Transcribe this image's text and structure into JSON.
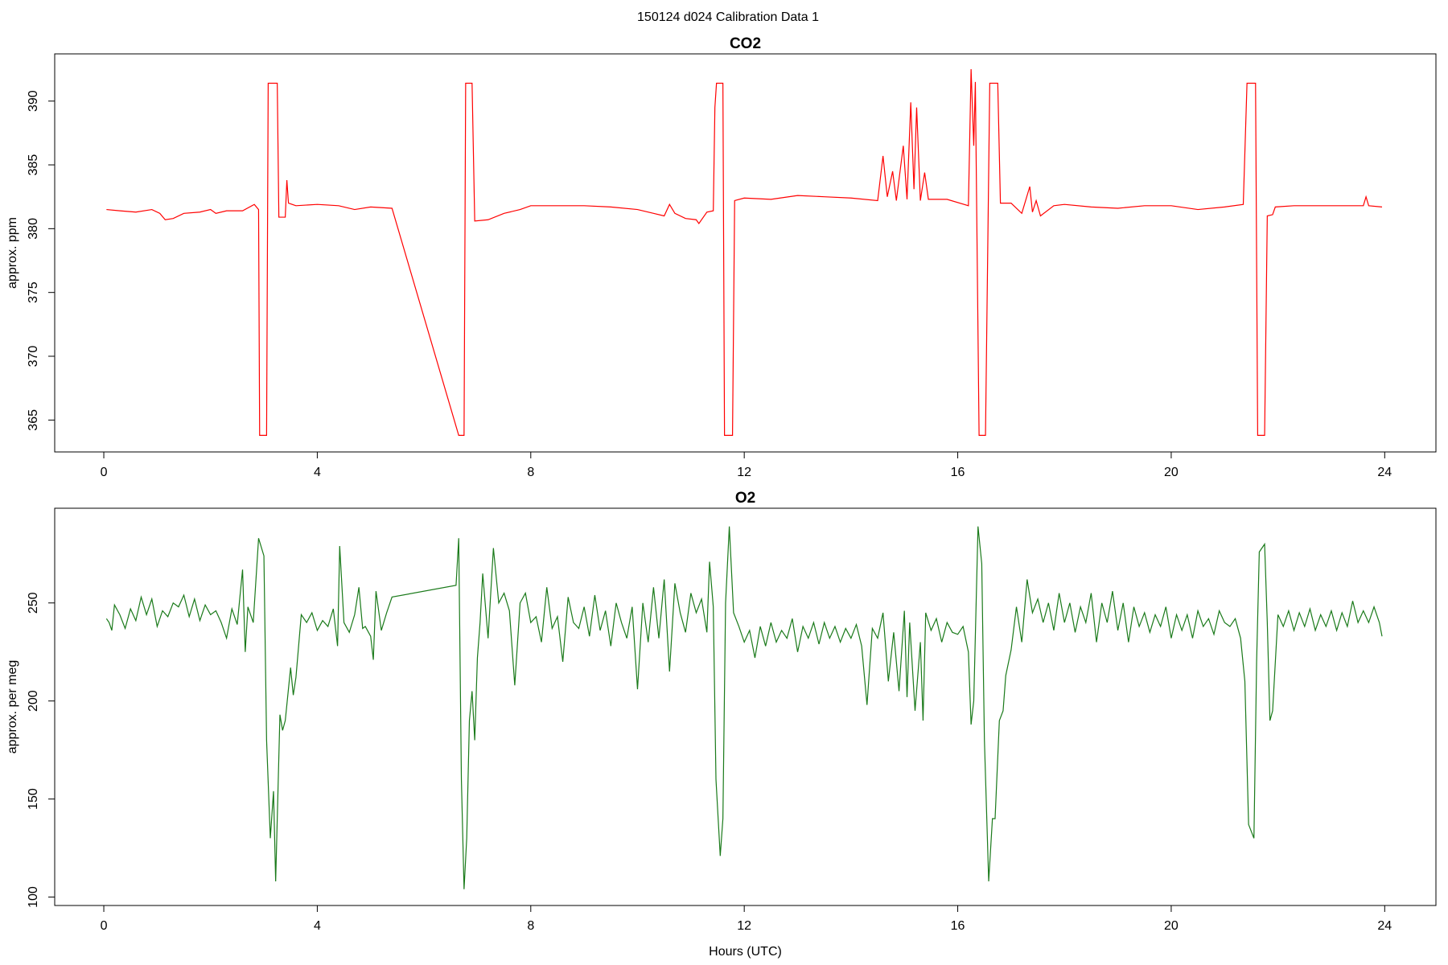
{
  "title": "150124   d024   Calibration Data 1",
  "chart_data": [
    {
      "type": "line",
      "title": "CO2",
      "ylabel": "approx. ppm",
      "color": "#ff0000",
      "xlim": [
        -0.92,
        24.96
      ],
      "xticks": [
        0,
        4,
        8,
        12,
        16,
        20,
        24
      ],
      "ylim": [
        362.5,
        393.7
      ],
      "yticks": [
        365,
        370,
        375,
        380,
        385,
        390
      ],
      "x": [
        0.05,
        0.3,
        0.6,
        0.9,
        1.05,
        1.15,
        1.3,
        1.5,
        1.8,
        2.0,
        2.1,
        2.3,
        2.6,
        2.82,
        2.9,
        2.92,
        3.05,
        3.08,
        3.25,
        3.28,
        3.4,
        3.43,
        3.46,
        3.6,
        4.0,
        4.4,
        4.7,
        5.0,
        5.4,
        6.65,
        6.75,
        6.78,
        6.9,
        6.95,
        7.2,
        7.5,
        7.8,
        8.0,
        8.5,
        9.0,
        9.5,
        10.0,
        10.3,
        10.5,
        10.6,
        10.7,
        10.9,
        11.1,
        11.15,
        11.3,
        11.42,
        11.45,
        11.48,
        11.6,
        11.63,
        11.78,
        11.82,
        12.0,
        12.5,
        13.0,
        13.5,
        14.0,
        14.5,
        14.6,
        14.68,
        14.78,
        14.85,
        14.98,
        15.05,
        15.12,
        15.18,
        15.23,
        15.3,
        15.38,
        15.45,
        15.8,
        16.2,
        16.25,
        16.3,
        16.33,
        16.4,
        16.52,
        16.6,
        16.75,
        16.8,
        17.0,
        17.2,
        17.35,
        17.4,
        17.47,
        17.55,
        17.8,
        18.0,
        18.5,
        19.0,
        19.5,
        20.0,
        20.5,
        21.0,
        21.35,
        21.42,
        21.58,
        21.62,
        21.75,
        21.8,
        21.9,
        21.95,
        22.3,
        22.8,
        23.3,
        23.6,
        23.65,
        23.7,
        23.95
      ],
      "values": [
        381.5,
        381.4,
        381.3,
        381.5,
        381.2,
        380.7,
        380.8,
        381.2,
        381.3,
        381.5,
        381.2,
        381.4,
        381.4,
        381.9,
        381.5,
        363.8,
        363.8,
        391.4,
        391.4,
        380.9,
        380.9,
        383.8,
        382.0,
        381.8,
        381.9,
        381.8,
        381.5,
        381.7,
        381.6,
        363.8,
        363.8,
        391.4,
        391.4,
        380.6,
        380.7,
        381.2,
        381.5,
        381.8,
        381.8,
        381.8,
        381.7,
        381.5,
        381.2,
        381.0,
        381.9,
        381.2,
        380.8,
        380.7,
        380.4,
        381.3,
        381.4,
        389.5,
        391.4,
        391.4,
        363.8,
        363.8,
        382.2,
        382.4,
        382.3,
        382.6,
        382.5,
        382.4,
        382.2,
        385.7,
        382.5,
        384.5,
        382.2,
        386.5,
        382.3,
        389.9,
        383.1,
        389.5,
        382.2,
        384.4,
        382.3,
        382.3,
        381.8,
        392.5,
        386.5,
        391.5,
        363.8,
        363.8,
        391.4,
        391.4,
        382.0,
        382.0,
        381.2,
        383.3,
        381.3,
        382.2,
        381.0,
        381.8,
        381.9,
        381.7,
        381.6,
        381.8,
        381.8,
        381.5,
        381.7,
        381.9,
        391.4,
        391.4,
        363.8,
        363.8,
        381.0,
        381.1,
        381.7,
        381.8,
        381.8,
        381.8,
        381.8,
        382.5,
        381.8,
        381.7
      ]
    },
    {
      "type": "line",
      "title": "O2",
      "ylabel": "approx. per meg",
      "xlabel": "Hours (UTC)",
      "color": "#1a7a1a",
      "xlim": [
        -0.92,
        24.96
      ],
      "xticks": [
        0,
        4,
        8,
        12,
        16,
        20,
        24
      ],
      "ylim": [
        95.7,
        298.3
      ],
      "yticks": [
        100,
        150,
        200,
        250
      ],
      "x": [
        0.05,
        0.1,
        0.15,
        0.2,
        0.3,
        0.4,
        0.5,
        0.6,
        0.7,
        0.8,
        0.9,
        1.0,
        1.1,
        1.2,
        1.3,
        1.4,
        1.5,
        1.6,
        1.7,
        1.8,
        1.9,
        2.0,
        2.1,
        2.2,
        2.3,
        2.4,
        2.5,
        2.6,
        2.65,
        2.7,
        2.8,
        2.9,
        3.0,
        3.05,
        3.12,
        3.18,
        3.22,
        3.3,
        3.35,
        3.4,
        3.5,
        3.55,
        3.6,
        3.7,
        3.8,
        3.9,
        4.0,
        4.1,
        4.2,
        4.3,
        4.38,
        4.42,
        4.5,
        4.6,
        4.7,
        4.78,
        4.85,
        4.9,
        5.0,
        5.05,
        5.1,
        5.2,
        5.3,
        5.4,
        6.6,
        6.65,
        6.7,
        6.75,
        6.8,
        6.85,
        6.9,
        6.95,
        7.0,
        7.05,
        7.1,
        7.2,
        7.3,
        7.4,
        7.5,
        7.6,
        7.7,
        7.8,
        7.9,
        8.0,
        8.1,
        8.2,
        8.3,
        8.4,
        8.5,
        8.6,
        8.7,
        8.8,
        8.9,
        9.0,
        9.1,
        9.2,
        9.3,
        9.4,
        9.5,
        9.6,
        9.7,
        9.8,
        9.9,
        10.0,
        10.1,
        10.2,
        10.3,
        10.4,
        10.5,
        10.6,
        10.7,
        10.8,
        10.9,
        11.0,
        11.1,
        11.2,
        11.3,
        11.35,
        11.42,
        11.47,
        11.55,
        11.6,
        11.65,
        11.72,
        11.8,
        11.9,
        12.0,
        12.1,
        12.2,
        12.3,
        12.4,
        12.5,
        12.6,
        12.7,
        12.8,
        12.9,
        13.0,
        13.1,
        13.2,
        13.3,
        13.4,
        13.5,
        13.6,
        13.7,
        13.8,
        13.9,
        14.0,
        14.1,
        14.2,
        14.3,
        14.4,
        14.5,
        14.6,
        14.7,
        14.8,
        14.9,
        15.0,
        15.05,
        15.1,
        15.2,
        15.3,
        15.35,
        15.4,
        15.5,
        15.6,
        15.7,
        15.8,
        15.9,
        16.0,
        16.1,
        16.2,
        16.25,
        16.3,
        16.38,
        16.45,
        16.5,
        16.58,
        16.65,
        16.7,
        16.78,
        16.85,
        16.9,
        17.0,
        17.1,
        17.2,
        17.3,
        17.4,
        17.5,
        17.6,
        17.7,
        17.8,
        17.9,
        18.0,
        18.1,
        18.2,
        18.3,
        18.4,
        18.5,
        18.6,
        18.7,
        18.8,
        18.9,
        19.0,
        19.1,
        19.2,
        19.3,
        19.4,
        19.5,
        19.6,
        19.7,
        19.8,
        19.9,
        20.0,
        20.1,
        20.2,
        20.3,
        20.4,
        20.5,
        20.6,
        20.7,
        20.8,
        20.9,
        21.0,
        21.1,
        21.2,
        21.3,
        21.38,
        21.45,
        21.55,
        21.6,
        21.65,
        21.75,
        21.8,
        21.85,
        21.9,
        22.0,
        22.1,
        22.2,
        22.3,
        22.4,
        22.5,
        22.6,
        22.7,
        22.8,
        22.9,
        23.0,
        23.1,
        23.2,
        23.3,
        23.4,
        23.5,
        23.6,
        23.7,
        23.8,
        23.9,
        23.95
      ],
      "values": [
        242,
        240,
        236,
        249,
        244,
        237,
        247,
        241,
        253,
        244,
        252,
        238,
        246,
        243,
        250,
        248,
        254,
        243,
        252,
        241,
        249,
        244,
        246,
        240,
        232,
        247,
        239,
        267,
        225,
        248,
        240,
        283,
        274,
        180,
        130,
        154,
        108,
        193,
        185,
        190,
        217,
        203,
        212,
        244,
        240,
        245,
        236,
        241,
        238,
        247,
        228,
        279,
        240,
        235,
        244,
        258,
        237,
        238,
        233,
        221,
        256,
        236,
        245,
        253,
        259,
        283,
        160,
        104,
        130,
        190,
        205,
        180,
        222,
        240,
        265,
        232,
        278,
        250,
        255,
        246,
        208,
        250,
        255,
        240,
        243,
        230,
        258,
        237,
        243,
        220,
        253,
        240,
        237,
        248,
        233,
        254,
        236,
        246,
        228,
        250,
        240,
        232,
        248,
        206,
        250,
        230,
        258,
        232,
        262,
        215,
        260,
        245,
        235,
        255,
        245,
        252,
        235,
        271,
        248,
        160,
        121,
        140,
        250,
        289,
        245,
        238,
        230,
        236,
        222,
        238,
        228,
        240,
        230,
        236,
        232,
        242,
        225,
        238,
        232,
        240,
        229,
        240,
        232,
        238,
        230,
        237,
        232,
        239,
        228,
        198,
        237,
        232,
        245,
        210,
        235,
        205,
        246,
        202,
        240,
        195,
        230,
        190,
        245,
        236,
        242,
        230,
        240,
        235,
        234,
        238,
        225,
        188,
        200,
        289,
        270,
        180,
        108,
        140,
        140,
        190,
        195,
        213,
        226,
        248,
        230,
        262,
        245,
        252,
        240,
        250,
        236,
        255,
        240,
        250,
        235,
        248,
        240,
        255,
        230,
        250,
        240,
        256,
        236,
        250,
        230,
        248,
        238,
        245,
        235,
        244,
        238,
        248,
        232,
        244,
        236,
        244,
        232,
        246,
        238,
        242,
        234,
        246,
        240,
        238,
        242,
        232,
        210,
        137,
        130,
        220,
        276,
        280,
        240,
        190,
        195,
        244,
        238,
        246,
        236,
        245,
        238,
        247,
        236,
        244,
        238,
        246,
        236,
        245,
        238,
        251,
        240,
        246,
        240,
        248,
        240,
        233
      ]
    }
  ]
}
